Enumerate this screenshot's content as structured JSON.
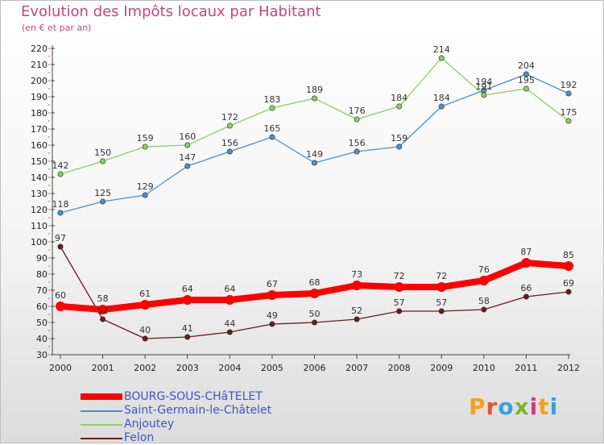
{
  "header": {
    "title": "Evolution des Impôts locaux par Habitant",
    "subtitle": "(en € et par an)"
  },
  "brand": {
    "letters": [
      "P",
      "r",
      "o",
      "x",
      "i",
      "t",
      "i"
    ],
    "colors": [
      "#f4a21c",
      "#e8552a",
      "#3aa0dc",
      "#7ab829",
      "#d03a8c",
      "#f4a21c",
      "#3aa0dc"
    ]
  },
  "chart_data": {
    "type": "line",
    "x": [
      "2000",
      "2001",
      "2002",
      "2003",
      "2004",
      "2005",
      "2006",
      "2007",
      "2008",
      "2009",
      "2010",
      "2011",
      "2012"
    ],
    "ylim": [
      30,
      220
    ],
    "yticks": [
      30,
      40,
      50,
      60,
      70,
      80,
      90,
      100,
      110,
      120,
      130,
      140,
      150,
      160,
      170,
      180,
      190,
      200,
      210,
      220
    ],
    "grid": false,
    "legend_position": "bottom-left",
    "series": [
      {
        "name": "BOURG-SOUS-CHâTELET",
        "color": "#ff0000",
        "values": [
          60,
          58,
          61,
          64,
          64,
          67,
          68,
          73,
          72,
          72,
          76,
          87,
          85
        ]
      },
      {
        "name": "Saint-Germain-le-Châtelet",
        "color": "#4a90c8",
        "values": [
          118,
          125,
          129,
          147,
          156,
          165,
          149,
          156,
          159,
          184,
          194,
          204,
          192
        ]
      },
      {
        "name": "Anjoutey",
        "color": "#88d060",
        "values": [
          142,
          150,
          159,
          160,
          172,
          183,
          189,
          176,
          184,
          214,
          191,
          195,
          175
        ]
      },
      {
        "name": "Felon",
        "color": "#6b1a1a",
        "values": [
          97,
          52,
          40,
          41,
          44,
          49,
          50,
          52,
          57,
          57,
          58,
          66,
          69
        ]
      }
    ]
  }
}
